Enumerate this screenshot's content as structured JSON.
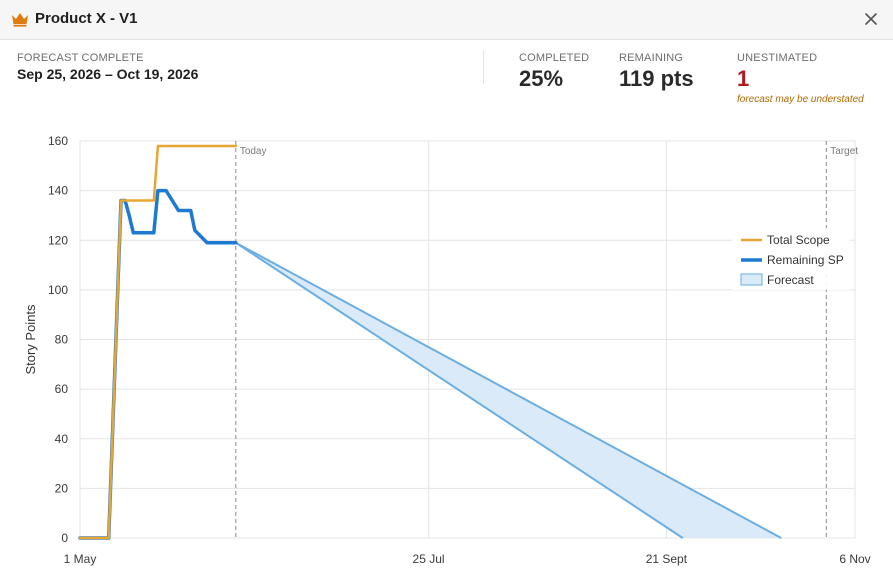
{
  "window": {
    "title": "Product X - V1"
  },
  "stats": {
    "forecast_label": "FORECAST COMPLETE",
    "forecast_value": "Sep 25, 2026 – Oct 19, 2026",
    "completed_label": "COMPLETED",
    "completed_value": "25%",
    "remaining_label": "REMAINING",
    "remaining_value": "119 pts",
    "unestimated_label": "UNESTIMATED",
    "unestimated_value": "1",
    "unestimated_note": "forecast may be understated"
  },
  "colors": {
    "scope": "#e8a630",
    "remaining": "#1e7ad1",
    "forecast_fill": "#dbeaf9",
    "forecast_stroke": "#6aaee3",
    "unestimated": "#b3191c",
    "crown": "#e07b10"
  },
  "icons": {
    "app": "crown-icon",
    "close": "close-icon"
  },
  "chart_data": {
    "type": "line",
    "ylabel": "Story Points",
    "xlabel": "",
    "ylim": [
      0,
      160
    ],
    "y_ticks": [
      0,
      20,
      40,
      60,
      80,
      100,
      120,
      140,
      160
    ],
    "x_ticks": [
      "1 May",
      "25 Jul",
      "21 Sept",
      "6 Nov"
    ],
    "x_tick_days": [
      0,
      85,
      143,
      189
    ],
    "x_range_days": [
      0,
      189
    ],
    "grid": true,
    "legend_position": "right",
    "markers": [
      {
        "label": "Today",
        "day": 38
      },
      {
        "label": "Target",
        "day": 182
      }
    ],
    "series": [
      {
        "name": "Total Scope",
        "points": [
          [
            0,
            0
          ],
          [
            7,
            0
          ],
          [
            10,
            136
          ],
          [
            18,
            136
          ],
          [
            19,
            158
          ],
          [
            38,
            158
          ]
        ]
      },
      {
        "name": "Remaining SP",
        "points": [
          [
            0,
            0
          ],
          [
            7,
            0
          ],
          [
            10,
            136
          ],
          [
            11,
            136
          ],
          [
            12,
            130
          ],
          [
            13,
            123
          ],
          [
            18,
            123
          ],
          [
            19,
            140
          ],
          [
            21,
            140
          ],
          [
            24,
            132
          ],
          [
            27,
            132
          ],
          [
            28,
            124
          ],
          [
            31,
            119
          ],
          [
            38,
            119
          ]
        ]
      },
      {
        "name": "Forecast",
        "type": "area",
        "start": [
          38,
          119
        ],
        "end_early": [
          147,
          0
        ],
        "end_late": [
          171,
          0
        ]
      }
    ]
  }
}
